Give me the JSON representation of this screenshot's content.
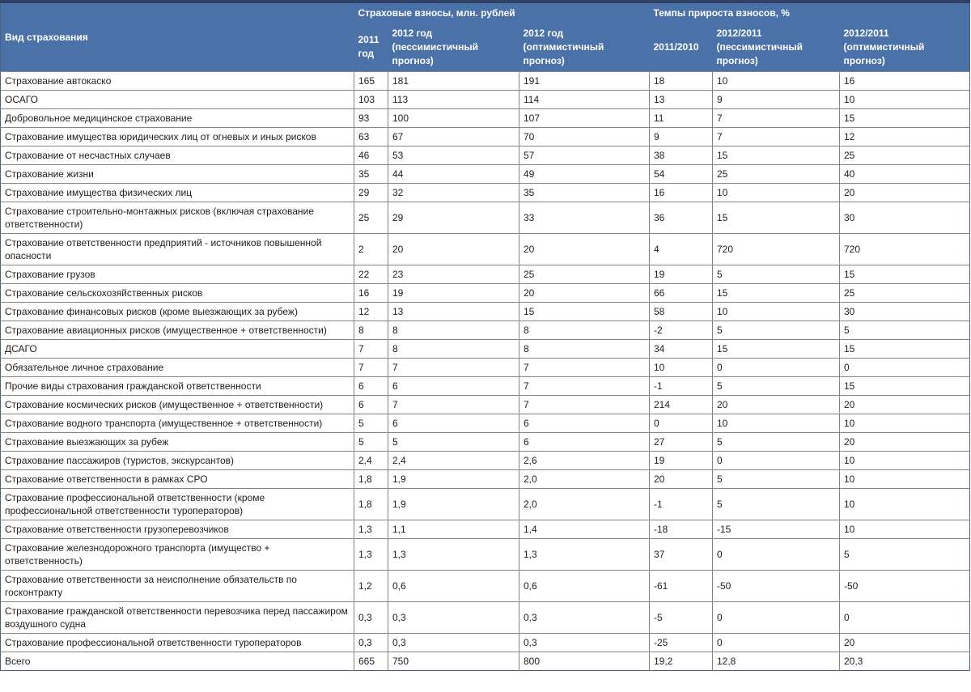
{
  "colors": {
    "header_background": "#4a71a8",
    "header_text": "#ffffff",
    "grid_line": "#848484",
    "outer_border": "#4e6077",
    "top_bar": "#2c4164",
    "body_text": "#1e1e1e"
  },
  "chart_data": {
    "type": "table",
    "column_groups": [
      {
        "label": "Страховые взносы, млн. рублей",
        "span": 3
      },
      {
        "label": "Темпы прироста взносов, %",
        "span": 3
      }
    ],
    "columns": [
      "Вид страхования",
      "2011 год",
      "2012 год (пессимистичный прогноз)",
      "2012 год (оптимистичный прогноз)",
      "2011/2010",
      "2012/2011 (пессимистичный прогноз)",
      "2012/2011 (оптимистичный прогноз)"
    ],
    "rows": [
      {
        "name": "Страхование автокаско",
        "values": [
          "165",
          "181",
          "191",
          "18",
          "10",
          "16"
        ]
      },
      {
        "name": "ОСАГО",
        "values": [
          "103",
          "113",
          "114",
          "13",
          "9",
          "10"
        ]
      },
      {
        "name": "Добровольное медицинское страхование",
        "values": [
          "93",
          "100",
          "107",
          "11",
          "7",
          "15"
        ]
      },
      {
        "name": "Страхование имущества юридических лиц от огневых и иных рисков",
        "values": [
          "63",
          "67",
          "70",
          "9",
          "7",
          "12"
        ]
      },
      {
        "name": "Страхование от несчастных случаев",
        "values": [
          "46",
          "53",
          "57",
          "38",
          "15",
          "25"
        ]
      },
      {
        "name": "Страхование жизни",
        "values": [
          "35",
          "44",
          "49",
          "54",
          "25",
          "40"
        ]
      },
      {
        "name": "Страхование имущества физических лиц",
        "values": [
          "29",
          "32",
          "35",
          "16",
          "10",
          "20"
        ]
      },
      {
        "name": "Страхование строительно-монтажных рисков (включая страхование ответственности)",
        "values": [
          "25",
          "29",
          "33",
          "36",
          "15",
          "30"
        ]
      },
      {
        "name": "Страхование ответственности предприятий - источников повышенной опасности",
        "values": [
          "2",
          "20",
          "20",
          "4",
          "720",
          "720"
        ]
      },
      {
        "name": "Страхование грузов",
        "values": [
          "22",
          "23",
          "25",
          "19",
          "5",
          "15"
        ]
      },
      {
        "name": "Страхование сельскохозяйственных рисков",
        "values": [
          "16",
          "19",
          "20",
          "66",
          "15",
          "25"
        ]
      },
      {
        "name": "Страхование финансовых рисков (кроме выезжающих за рубеж)",
        "values": [
          "12",
          "13",
          "15",
          "58",
          "10",
          "30"
        ]
      },
      {
        "name": "Страхование авиационных рисков (имущественное + ответственности)",
        "values": [
          "8",
          "8",
          "8",
          "-2",
          "5",
          "5"
        ]
      },
      {
        "name": "ДСАГО",
        "values": [
          "7",
          "8",
          "8",
          "34",
          "15",
          "15"
        ]
      },
      {
        "name": "Обязательное личное страхование",
        "values": [
          "7",
          "7",
          "7",
          "10",
          "0",
          "0"
        ]
      },
      {
        "name": "Прочие виды страхования гражданской ответственности",
        "values": [
          "6",
          "6",
          "7",
          "-1",
          "5",
          "15"
        ]
      },
      {
        "name": "Страхование космических рисков (имущественное + ответственности)",
        "values": [
          "6",
          "7",
          "7",
          "214",
          "20",
          "20"
        ]
      },
      {
        "name": "Страхование водного транспорта (имущественное + ответственности)",
        "values": [
          "5",
          "6",
          "6",
          "0",
          "10",
          "10"
        ]
      },
      {
        "name": "Страхование выезжающих за рубеж",
        "values": [
          "5",
          "5",
          "6",
          "27",
          "5",
          "20"
        ]
      },
      {
        "name": "Страхование пассажиров (туристов, экскурсантов)",
        "values": [
          "2,4",
          "2,4",
          "2,6",
          "19",
          "0",
          "10"
        ]
      },
      {
        "name": "Страхование ответственности в рамках СРО",
        "values": [
          "1,8",
          "1,9",
          "2,0",
          "20",
          "5",
          "10"
        ]
      },
      {
        "name": "Страхование профессиональной ответственности (кроме профессиональной ответственности туроператоров)",
        "values": [
          "1,8",
          "1,9",
          "2,0",
          "-1",
          "5",
          "10"
        ]
      },
      {
        "name": "Страхование ответственности грузоперевозчиков",
        "values": [
          "1,3",
          "1,1",
          "1,4",
          "-18",
          "-15",
          "10"
        ]
      },
      {
        "name": "Страхование железнодорожного транспорта (имущество + ответственность)",
        "values": [
          "1,3",
          "1,3",
          "1,3",
          "37",
          "0",
          "5"
        ]
      },
      {
        "name": "Страхование ответственности за неисполнение обязательств по госконтракту",
        "values": [
          "1,2",
          "0,6",
          "0,6",
          "-61",
          "-50",
          "-50"
        ]
      },
      {
        "name": "Страхование гражданской ответственности перевозчика перед пассажиром воздушного судна",
        "values": [
          "0,3",
          "0,3",
          "0,3",
          "-5",
          "0",
          "0"
        ]
      },
      {
        "name": "Страхование профессиональной ответственности туроператоров",
        "values": [
          "0,3",
          "0,3",
          "0,3",
          "-25",
          "0",
          "20"
        ]
      }
    ],
    "total_row": {
      "name": "Всего",
      "values": [
        "665",
        "750",
        "800",
        "19,2",
        "12,8",
        "20,3"
      ]
    }
  }
}
